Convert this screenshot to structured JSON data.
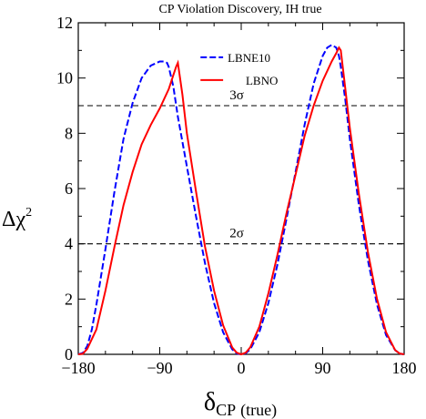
{
  "chart_data": {
    "type": "line",
    "title": "CP Violation Discovery, IH true",
    "xlabel": {
      "symbol": "δ",
      "subscript": "CP",
      "suffix": "(true)"
    },
    "ylabel": {
      "prefix": "Δ",
      "symbol": "χ",
      "superscript": "2"
    },
    "xlim": [
      -180,
      180
    ],
    "ylim": [
      0,
      12
    ],
    "xticks": [
      -180,
      -90,
      0,
      90,
      180
    ],
    "xtick_labels": [
      "−180",
      "−90",
      "0",
      "90",
      "180"
    ],
    "yticks": [
      0,
      2,
      4,
      6,
      8,
      10,
      12
    ],
    "ytick_labels": [
      "0",
      "2",
      "4",
      "6",
      "8",
      "10",
      "12"
    ],
    "reference_lines": [
      {
        "y": 9,
        "label": "3σ",
        "style": "dashed",
        "color": "#000000"
      },
      {
        "y": 4,
        "label": "2σ",
        "style": "dashed",
        "color": "#000000"
      }
    ],
    "legend_position": "top-center",
    "series": [
      {
        "name": "LBNE10",
        "color": "#0000ff",
        "style": "dashed",
        "x": [
          -180,
          -175,
          -170,
          -165,
          -160,
          -150,
          -140,
          -130,
          -120,
          -110,
          -100,
          -90,
          -85,
          -82,
          -80,
          -75,
          -70,
          -60,
          -50,
          -40,
          -30,
          -20,
          -10,
          -5,
          0,
          5,
          10,
          20,
          30,
          40,
          50,
          60,
          70,
          80,
          90,
          95,
          100,
          105,
          108,
          110,
          115,
          120,
          130,
          140,
          150,
          160,
          170,
          175,
          180
        ],
        "y": [
          0,
          0.05,
          0.3,
          0.9,
          1.8,
          3.8,
          5.9,
          7.8,
          9.1,
          10.0,
          10.45,
          10.6,
          10.6,
          10.55,
          10.4,
          9.7,
          8.6,
          6.8,
          5.0,
          3.3,
          1.85,
          0.8,
          0.18,
          0.03,
          0,
          0.04,
          0.18,
          0.8,
          1.85,
          3.25,
          4.9,
          6.6,
          8.3,
          9.8,
          10.8,
          11.1,
          11.2,
          11.1,
          10.8,
          10.4,
          9.2,
          7.8,
          5.4,
          3.4,
          1.8,
          0.7,
          0.15,
          0.03,
          0
        ]
      },
      {
        "name": "LBNO",
        "color": "#ff0000",
        "style": "solid",
        "x": [
          -180,
          -175,
          -170,
          -160,
          -150,
          -140,
          -130,
          -120,
          -110,
          -100,
          -90,
          -80,
          -75,
          -72,
          -70,
          -65,
          -60,
          -50,
          -40,
          -30,
          -20,
          -10,
          -5,
          0,
          5,
          10,
          20,
          30,
          40,
          50,
          60,
          70,
          80,
          90,
          100,
          105,
          108,
          110,
          115,
          120,
          130,
          140,
          150,
          160,
          170,
          175,
          180
        ],
        "y": [
          0,
          0.02,
          0.2,
          0.9,
          2.3,
          3.9,
          5.4,
          6.6,
          7.6,
          8.3,
          8.9,
          9.6,
          10.1,
          10.4,
          10.55,
          9.4,
          8.0,
          5.9,
          3.9,
          2.3,
          1.05,
          0.25,
          0.06,
          0,
          0.06,
          0.25,
          1.0,
          2.2,
          3.6,
          5.1,
          6.5,
          7.9,
          9.0,
          9.9,
          10.6,
          10.9,
          11.1,
          11.0,
          9.6,
          8.2,
          5.8,
          3.7,
          2.0,
          0.8,
          0.15,
          0.03,
          0
        ]
      }
    ]
  }
}
